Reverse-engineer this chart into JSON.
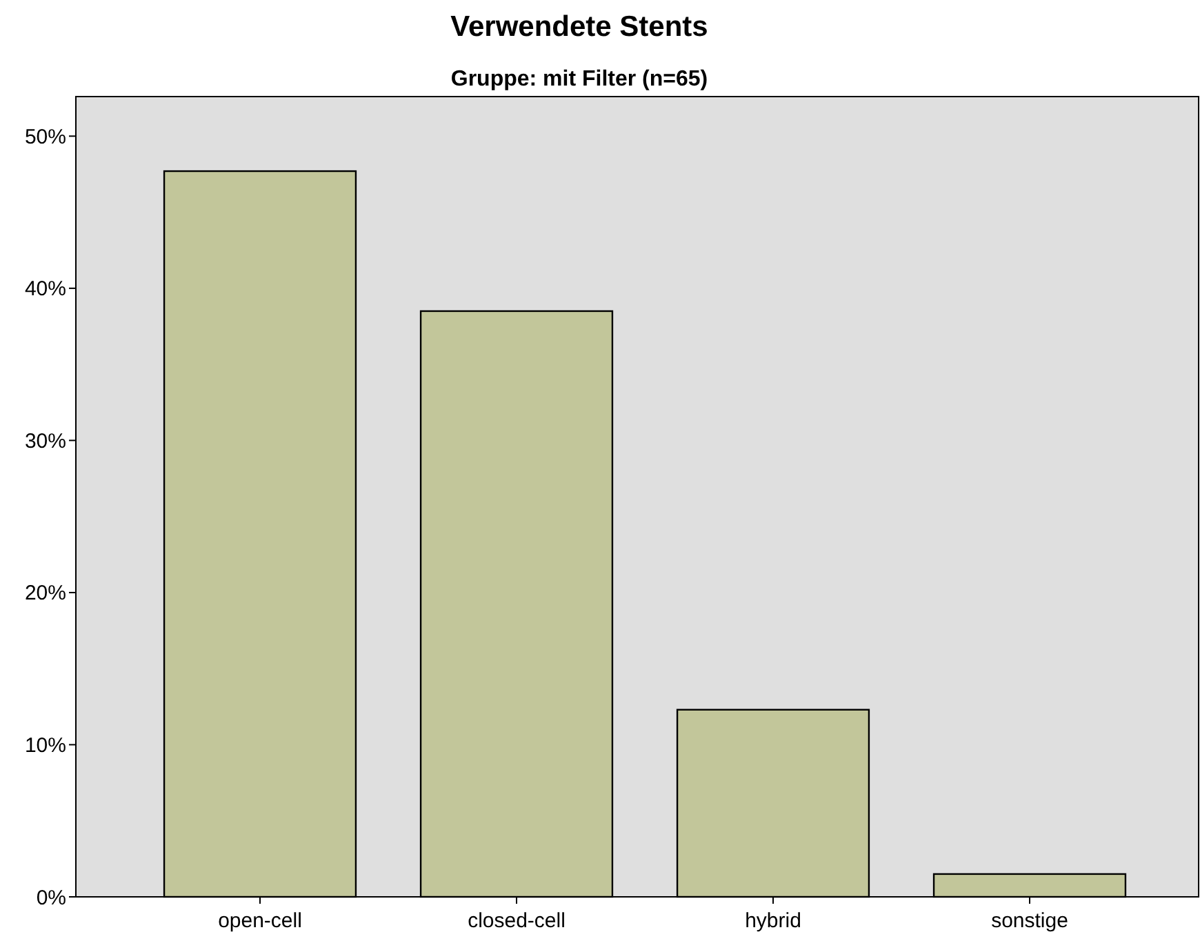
{
  "chart_data": {
    "type": "bar",
    "title": "Verwendete Stents",
    "subtitle": "Gruppe: mit Filter (n=65)",
    "categories": [
      "open-cell",
      "closed-cell",
      "hybrid",
      "sonstige"
    ],
    "values": [
      47.7,
      38.5,
      12.3,
      1.5
    ],
    "color": "#c2c69a",
    "ylim": [
      0,
      52.6
    ],
    "yticks": [
      {
        "value": 0,
        "label": "0%"
      },
      {
        "value": 10,
        "label": "10%"
      },
      {
        "value": 20,
        "label": "20%"
      },
      {
        "value": 30,
        "label": "30%"
      },
      {
        "value": 40,
        "label": "40%"
      },
      {
        "value": 50,
        "label": "50%"
      }
    ],
    "grid": false
  }
}
